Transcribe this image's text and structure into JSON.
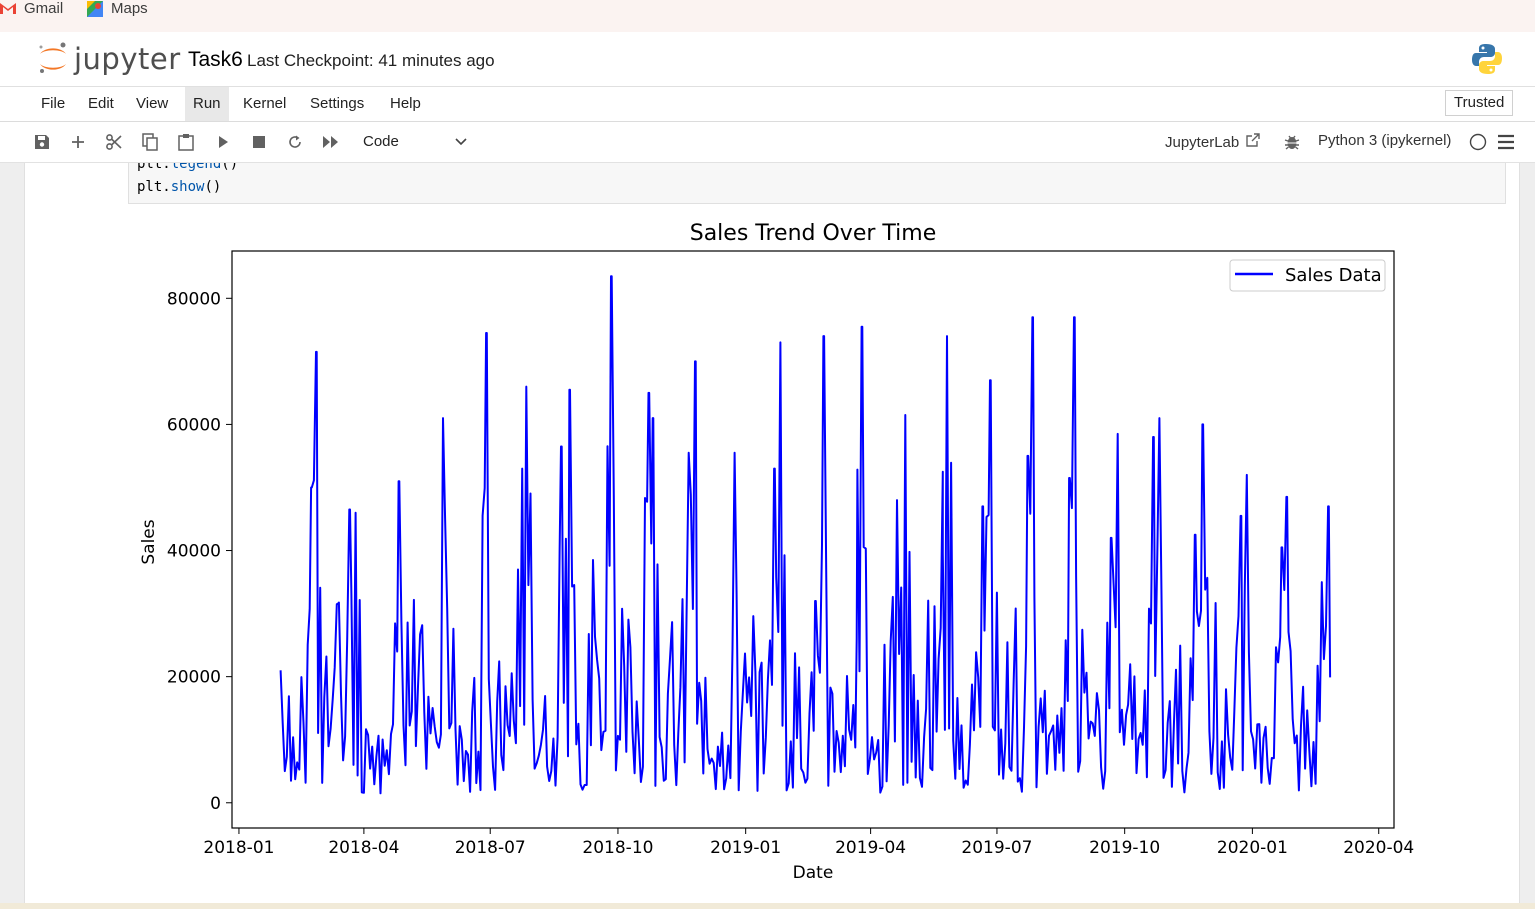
{
  "bookmarks": [
    {
      "label": "Gmail",
      "icon": "gmail-icon"
    },
    {
      "label": "Maps",
      "icon": "maps-icon"
    }
  ],
  "header": {
    "logo_text": "jupyter",
    "notebook_title": "Task6",
    "checkpoint": "Last Checkpoint: 41 minutes ago"
  },
  "menu": {
    "items": [
      "File",
      "Edit",
      "View",
      "Run",
      "Kernel",
      "Settings",
      "Help"
    ],
    "active": "Run",
    "trusted": "Trusted"
  },
  "toolbar": {
    "icons": [
      "save-icon",
      "add-cell-icon",
      "cut-icon",
      "copy-icon",
      "paste-icon",
      "run-icon",
      "stop-icon",
      "restart-icon",
      "fast-forward-icon"
    ],
    "cell_type": "Code",
    "jupyterlab_label": "JupyterLab",
    "kernel_label": "Python 3 (ipykernel)"
  },
  "code": {
    "lines": [
      {
        "obj": "plt.",
        "fn": "legend",
        "rest": "()"
      },
      {
        "obj": "plt.",
        "fn": "show",
        "rest": "()"
      }
    ]
  },
  "chart_data": {
    "type": "line",
    "title": "Sales Trend Over Time",
    "xlabel": "Date",
    "ylabel": "Sales",
    "x_tick_labels": [
      "2018-01",
      "2018-04",
      "2018-07",
      "2018-10",
      "2019-01",
      "2019-04",
      "2019-07",
      "2019-10",
      "2020-01",
      "2020-04"
    ],
    "y_tick_labels": [
      "0",
      "20000",
      "40000",
      "60000",
      "80000"
    ],
    "xlim": [
      "2017-12-27",
      "2020-04-12"
    ],
    "ylim": [
      -4000,
      87500
    ],
    "legend": {
      "placement": "top-right",
      "entries": [
        "Sales Data"
      ]
    },
    "grid": false,
    "color": "#0000ff",
    "series": [
      {
        "name": "Sales Data",
        "peaks": [
          [
            "2018-01-31",
            21000
          ],
          [
            "2018-02-22",
            50000
          ],
          [
            "2018-02-26",
            71500
          ],
          [
            "2018-03-13",
            31500
          ],
          [
            "2018-03-22",
            46500
          ],
          [
            "2018-03-26",
            46000
          ],
          [
            "2018-04-26",
            51000
          ],
          [
            "2018-05-28",
            61000
          ],
          [
            "2018-06-28",
            74500
          ],
          [
            "2018-07-24",
            53000
          ],
          [
            "2018-07-27",
            66000
          ],
          [
            "2018-08-21",
            56500
          ],
          [
            "2018-08-27",
            65500
          ],
          [
            "2018-09-13",
            38500
          ],
          [
            "2018-09-26",
            83500
          ],
          [
            "2018-10-23",
            65000
          ],
          [
            "2018-10-26",
            61000
          ],
          [
            "2018-11-21",
            55500
          ],
          [
            "2018-11-26",
            70000
          ],
          [
            "2018-12-24",
            55500
          ],
          [
            "2019-01-22",
            53000
          ],
          [
            "2019-01-26",
            73000
          ],
          [
            "2019-02-20",
            32000
          ],
          [
            "2019-02-26",
            74000
          ],
          [
            "2019-03-22",
            26000
          ],
          [
            "2019-03-26",
            75500
          ],
          [
            "2019-04-20",
            48000
          ],
          [
            "2019-04-26",
            61500
          ],
          [
            "2019-05-23",
            39500
          ],
          [
            "2019-05-26",
            74000
          ],
          [
            "2019-06-21",
            47000
          ],
          [
            "2019-06-26",
            67000
          ],
          [
            "2019-07-23",
            55000
          ],
          [
            "2019-07-27",
            77000
          ],
          [
            "2019-08-22",
            51500
          ],
          [
            "2019-08-26",
            77000
          ],
          [
            "2019-09-21",
            42000
          ],
          [
            "2019-09-26",
            58500
          ],
          [
            "2019-10-22",
            58000
          ],
          [
            "2019-10-26",
            61000
          ],
          [
            "2019-11-21",
            42500
          ],
          [
            "2019-11-26",
            60000
          ],
          [
            "2019-12-24",
            45500
          ],
          [
            "2019-12-28",
            52000
          ],
          [
            "2020-01-22",
            40500
          ],
          [
            "2020-01-26",
            48500
          ],
          [
            "2020-02-20",
            35000
          ],
          [
            "2020-02-25",
            47000
          ]
        ]
      }
    ]
  }
}
